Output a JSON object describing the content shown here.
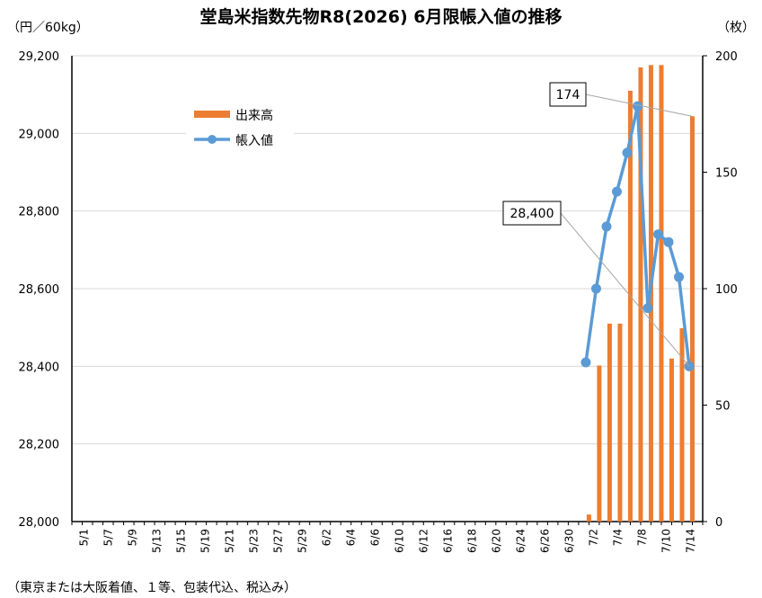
{
  "chart_data": {
    "type": "bar+line",
    "title": "堂島米指数先物R8(2026) 6月限帳入値の推移",
    "left_axis_unit": "（円／60kg）",
    "right_axis_unit": "（枚）",
    "left_ylim": [
      28000,
      29200
    ],
    "left_ticks": [
      "28,000",
      "28,200",
      "28,400",
      "28,600",
      "28,800",
      "29,000",
      "29,200"
    ],
    "right_ylim": [
      0,
      200
    ],
    "right_ticks": [
      "0",
      "50",
      "100",
      "150",
      "200"
    ],
    "x_labels": [
      "5/1",
      "5/7",
      "5/9",
      "5/13",
      "5/15",
      "5/19",
      "5/21",
      "5/23",
      "5/27",
      "5/29",
      "6/2",
      "6/4",
      "6/6",
      "6/10",
      "6/12",
      "6/16",
      "6/18",
      "6/20",
      "6/24",
      "6/26",
      "6/30",
      "7/2",
      "7/4",
      "7/8",
      "7/10",
      "7/14"
    ],
    "grid": true,
    "legend_position": "upper-left",
    "series": [
      {
        "name": "出来高",
        "axis": "right",
        "color": "#ED7D31",
        "kind": "bar",
        "points": [
          {
            "day": 50.0,
            "value": 3
          },
          {
            "day": 51.0,
            "value": 67
          },
          {
            "day": 52.0,
            "value": 85
          },
          {
            "day": 53.0,
            "value": 85
          },
          {
            "day": 54.0,
            "value": 185
          },
          {
            "day": 55.0,
            "value": 195
          },
          {
            "day": 56.0,
            "value": 196
          },
          {
            "day": 57.0,
            "value": 196
          },
          {
            "day": 58.0,
            "value": 70
          },
          {
            "day": 59.0,
            "value": 83
          },
          {
            "day": 60.0,
            "value": 174
          }
        ]
      },
      {
        "name": "帳入値",
        "axis": "left",
        "color": "#5B9BD5",
        "kind": "line",
        "points": [
          {
            "day": 49.7,
            "value": 28410
          },
          {
            "day": 50.7,
            "value": 28600
          },
          {
            "day": 51.7,
            "value": 28760
          },
          {
            "day": 52.7,
            "value": 28850
          },
          {
            "day": 53.7,
            "value": 28950
          },
          {
            "day": 54.7,
            "value": 29070
          },
          {
            "day": 55.7,
            "value": 28550
          },
          {
            "day": 56.7,
            "value": 28740
          },
          {
            "day": 57.7,
            "value": 28720
          },
          {
            "day": 58.7,
            "value": 28630
          },
          {
            "day": 59.7,
            "value": 28400
          }
        ]
      }
    ],
    "annotations": [
      {
        "text": "174",
        "series": "出来高",
        "point_index": 10
      },
      {
        "text": "28,400",
        "series": "帳入値",
        "point_index": 10
      }
    ],
    "footnote": "（東京または大阪着値、１等、包装代込、税込み）"
  }
}
